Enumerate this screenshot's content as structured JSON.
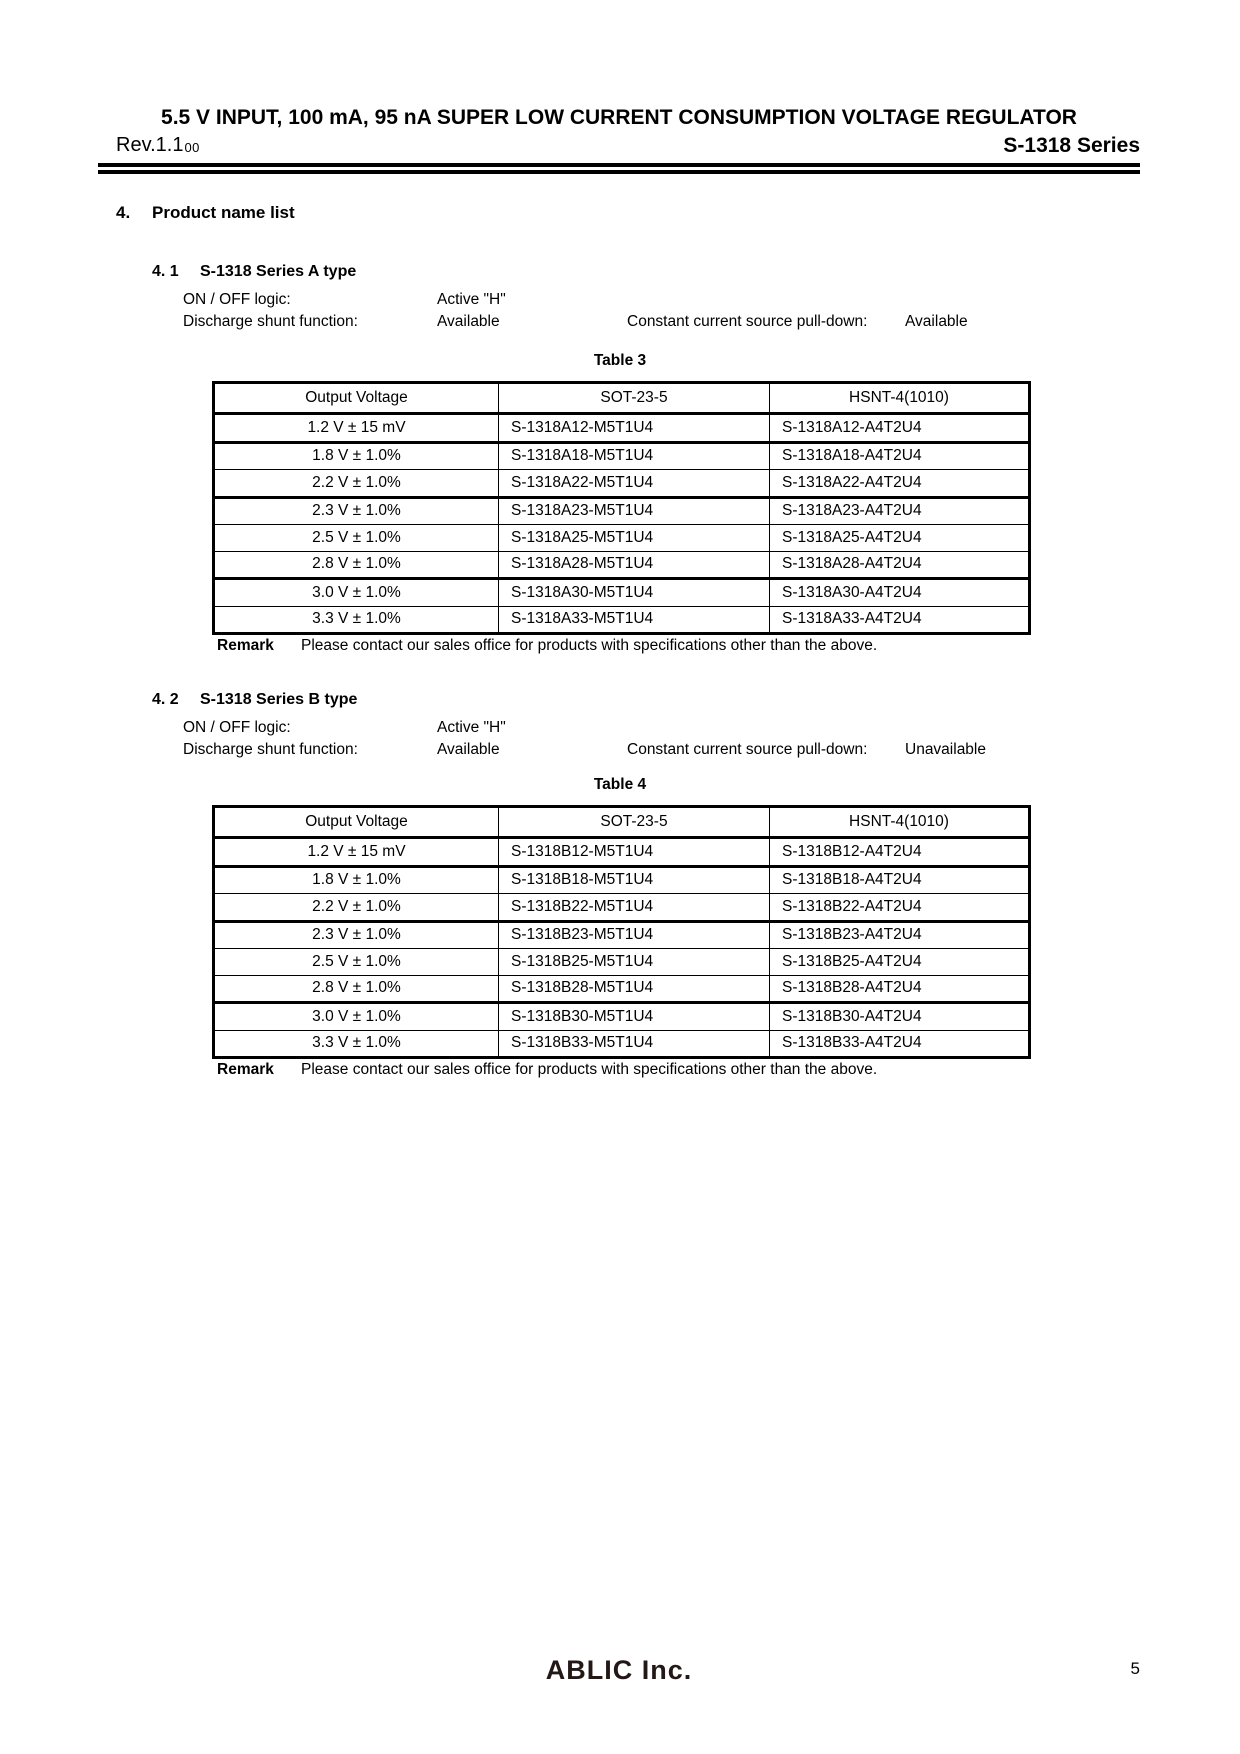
{
  "header": {
    "title": "5.5 V INPUT, 100 mA, 95 nA SUPER LOW CURRENT CONSUMPTION VOLTAGE REGULATOR",
    "revision": "Rev.1.1",
    "revision_sub": "00",
    "series": "S-1318 Series"
  },
  "section": {
    "number": "4.",
    "title": "Product name list"
  },
  "subsections": [
    {
      "number": "4. 1",
      "title": "S-1318 Series A type",
      "specs": [
        {
          "label": "ON / OFF logic:",
          "value": "Active \"H\"",
          "label2": "",
          "value2": ""
        },
        {
          "label": "Discharge shunt function:",
          "value": "Available",
          "label2": "Constant current source pull-down:",
          "value2": "Available"
        }
      ],
      "table": {
        "caption": "Table 3",
        "headers": [
          "Output Voltage",
          "SOT-23-5",
          "HSNT-4(1010)"
        ],
        "rows": [
          [
            "1.2 V ± 15 mV",
            "S-1318A12-M5T1U4",
            "S-1318A12-A4T2U4"
          ],
          [
            "1.8 V ± 1.0%",
            "S-1318A18-M5T1U4",
            "S-1318A18-A4T2U4"
          ],
          [
            "2.2 V ± 1.0%",
            "S-1318A22-M5T1U4",
            "S-1318A22-A4T2U4"
          ],
          [
            "2.3 V ± 1.0%",
            "S-1318A23-M5T1U4",
            "S-1318A23-A4T2U4"
          ],
          [
            "2.5 V ± 1.0%",
            "S-1318A25-M5T1U4",
            "S-1318A25-A4T2U4"
          ],
          [
            "2.8 V ± 1.0%",
            "S-1318A28-M5T1U4",
            "S-1318A28-A4T2U4"
          ],
          [
            "3.0 V ± 1.0%",
            "S-1318A30-M5T1U4",
            "S-1318A30-A4T2U4"
          ],
          [
            "3.3 V ± 1.0%",
            "S-1318A33-M5T1U4",
            "S-1318A33-A4T2U4"
          ]
        ]
      },
      "remark_label": "Remark",
      "remark_text": "Please contact our sales office for products with specifications other than the above."
    },
    {
      "number": "4. 2",
      "title": "S-1318 Series B type",
      "specs": [
        {
          "label": "ON / OFF logic:",
          "value": "Active \"H\"",
          "label2": "",
          "value2": ""
        },
        {
          "label": "Discharge shunt function:",
          "value": "Available",
          "label2": "Constant current source pull-down:",
          "value2": "Unavailable"
        }
      ],
      "table": {
        "caption": "Table 4",
        "headers": [
          "Output Voltage",
          "SOT-23-5",
          "HSNT-4(1010)"
        ],
        "rows": [
          [
            "1.2 V ± 15 mV",
            "S-1318B12-M5T1U4",
            "S-1318B12-A4T2U4"
          ],
          [
            "1.8 V ± 1.0%",
            "S-1318B18-M5T1U4",
            "S-1318B18-A4T2U4"
          ],
          [
            "2.2 V ± 1.0%",
            "S-1318B22-M5T1U4",
            "S-1318B22-A4T2U4"
          ],
          [
            "2.3 V ± 1.0%",
            "S-1318B23-M5T1U4",
            "S-1318B23-A4T2U4"
          ],
          [
            "2.5 V ± 1.0%",
            "S-1318B25-M5T1U4",
            "S-1318B25-A4T2U4"
          ],
          [
            "2.8 V ± 1.0%",
            "S-1318B28-M5T1U4",
            "S-1318B28-A4T2U4"
          ],
          [
            "3.0 V ± 1.0%",
            "S-1318B30-M5T1U4",
            "S-1318B30-A4T2U4"
          ],
          [
            "3.3 V ± 1.0%",
            "S-1318B33-M5T1U4",
            "S-1318B33-A4T2U4"
          ]
        ]
      },
      "remark_label": "Remark",
      "remark_text": "Please contact our sales office for products with specifications other than the above."
    }
  ],
  "footer": {
    "logo": "ABLIC Inc.",
    "page_number": "5",
    "logo_color": "#231815"
  }
}
